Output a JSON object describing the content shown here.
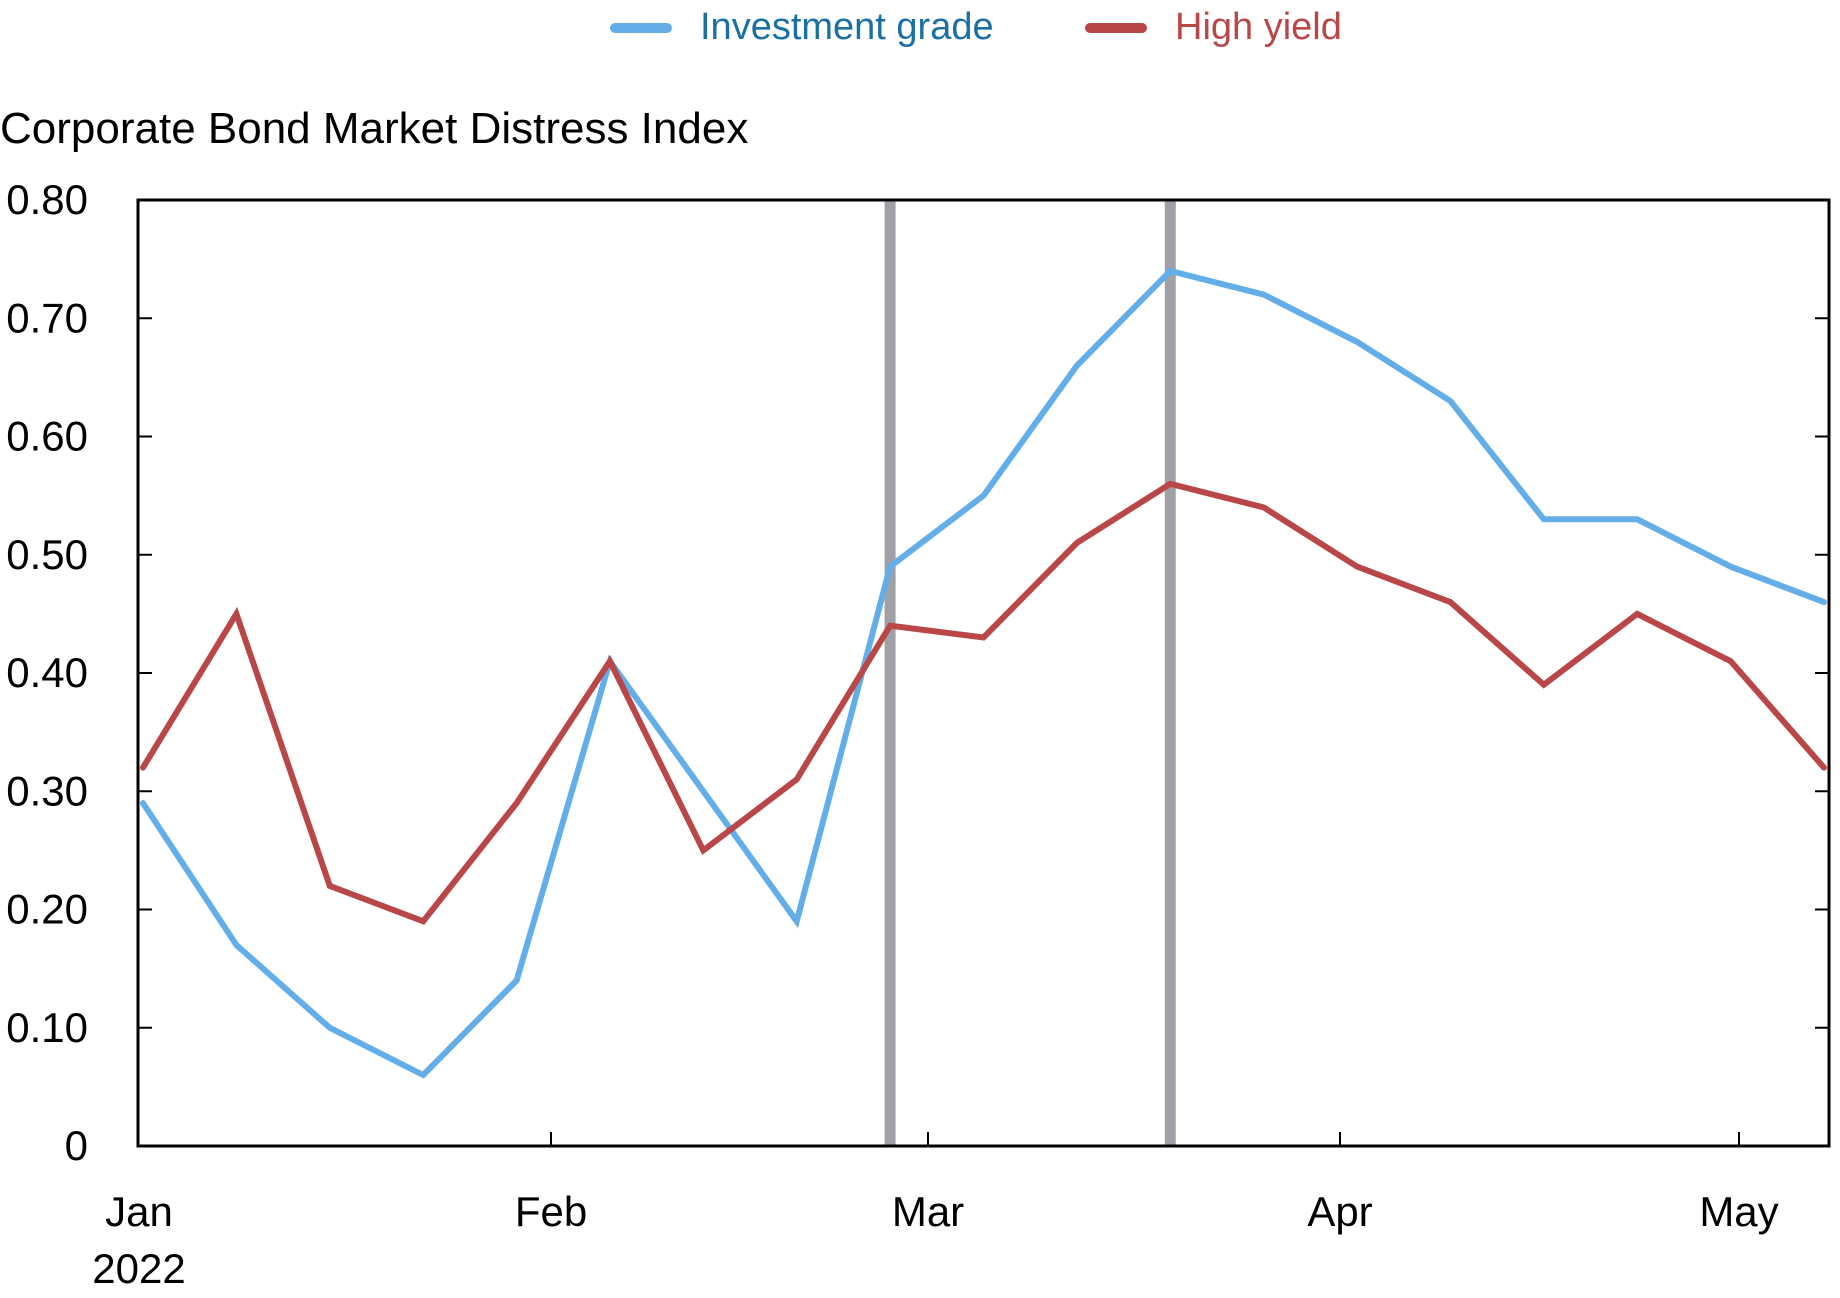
{
  "legend": {
    "items": [
      {
        "label": "Investment grade",
        "color": "#63aee8",
        "text_color": "#1a6fa3"
      },
      {
        "label": "High yield",
        "color": "#b94747",
        "text_color": "#b94747"
      }
    ]
  },
  "title": "Corporate Bond Market Distress Index",
  "colors": {
    "investment_grade": "#63aee8",
    "high_yield": "#b94747",
    "event_line": "#9fa1a7",
    "axis": "#000000"
  },
  "chart_data": {
    "type": "line",
    "title": "Corporate Bond Market Distress Index",
    "xlabel": "",
    "ylabel": "Corporate Bond Market Distress Index",
    "ylim": [
      0,
      0.8
    ],
    "yticks": [
      "0",
      "0.10",
      "0.20",
      "0.30",
      "0.40",
      "0.50",
      "0.60",
      "0.70",
      "0.80"
    ],
    "xticks": [
      "Jan",
      "Feb",
      "Mar",
      "Apr",
      "May"
    ],
    "xtick_year": "2022",
    "grid": false,
    "legend_position": "top",
    "x": [
      "2022-01-03",
      "2022-01-10",
      "2022-01-17",
      "2022-01-24",
      "2022-01-31",
      "2022-02-07",
      "2022-02-14",
      "2022-02-21",
      "2022-02-28",
      "2022-03-07",
      "2022-03-14",
      "2022-03-21",
      "2022-03-28",
      "2022-04-04",
      "2022-04-11",
      "2022-04-18",
      "2022-04-25",
      "2022-05-02",
      "2022-05-09"
    ],
    "series": [
      {
        "name": "Investment grade",
        "color": "#63aee8",
        "values": [
          0.29,
          0.17,
          0.1,
          0.06,
          0.14,
          0.41,
          0.3,
          0.19,
          0.49,
          0.55,
          0.66,
          0.74,
          0.72,
          0.68,
          0.63,
          0.53,
          0.53,
          0.49,
          0.46
        ]
      },
      {
        "name": "High yield",
        "color": "#b94747",
        "values": [
          0.32,
          0.45,
          0.22,
          0.19,
          0.29,
          0.41,
          0.25,
          0.31,
          0.44,
          0.43,
          0.51,
          0.56,
          0.54,
          0.49,
          0.46,
          0.39,
          0.45,
          0.41,
          0.32
        ]
      }
    ],
    "vertical_markers": [
      {
        "x": "2022-02-28",
        "color": "#9fa1a7"
      },
      {
        "x": "2022-03-21",
        "color": "#9fa1a7"
      }
    ]
  }
}
